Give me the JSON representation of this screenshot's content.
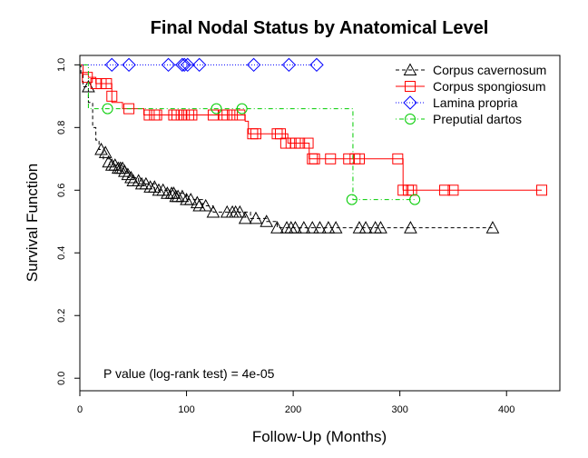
{
  "chart_data": {
    "type": "line",
    "title": "Final Nodal Status by Anatomical Level",
    "xlabel": "Follow-Up (Months)",
    "ylabel": "Survival Function",
    "xlim": [
      0,
      450
    ],
    "ylim": [
      -0.04,
      1.03
    ],
    "x_ticks": [
      0,
      100,
      200,
      300,
      400
    ],
    "y_ticks": [
      0.0,
      0.2,
      0.4,
      0.6,
      0.8,
      1.0
    ],
    "y_tick_labels": [
      "0.0",
      "0.2",
      "0.4",
      "0.6",
      "0.8",
      "1.0"
    ],
    "legend_position": "top-right",
    "grid": false,
    "annotation": "P value (log-rank test) =  4e-05",
    "series": [
      {
        "name": "Corpus cavernosum",
        "color": "#000000",
        "line_style": "dashed",
        "marker": "triangle",
        "steps": [
          [
            0,
            1.0
          ],
          [
            1,
            0.97
          ],
          [
            3,
            0.93
          ],
          [
            8,
            0.88
          ],
          [
            12,
            0.8
          ],
          [
            15,
            0.76
          ],
          [
            18,
            0.73
          ],
          [
            22,
            0.7
          ],
          [
            28,
            0.68
          ],
          [
            38,
            0.66
          ],
          [
            45,
            0.64
          ],
          [
            55,
            0.62
          ],
          [
            70,
            0.6
          ],
          [
            85,
            0.59
          ],
          [
            100,
            0.57
          ],
          [
            115,
            0.55
          ],
          [
            125,
            0.53
          ],
          [
            145,
            0.53
          ],
          [
            160,
            0.51
          ],
          [
            175,
            0.5
          ],
          [
            185,
            0.48
          ],
          [
            387,
            0.48
          ]
        ],
        "censored": [
          [
            8,
            0.93
          ],
          [
            20,
            0.73
          ],
          [
            24,
            0.72
          ],
          [
            27,
            0.69
          ],
          [
            30,
            0.68
          ],
          [
            33,
            0.68
          ],
          [
            36,
            0.67
          ],
          [
            38,
            0.67
          ],
          [
            40,
            0.67
          ],
          [
            42,
            0.66
          ],
          [
            45,
            0.65
          ],
          [
            48,
            0.64
          ],
          [
            50,
            0.63
          ],
          [
            55,
            0.63
          ],
          [
            58,
            0.62
          ],
          [
            62,
            0.62
          ],
          [
            66,
            0.61
          ],
          [
            70,
            0.61
          ],
          [
            74,
            0.6
          ],
          [
            78,
            0.6
          ],
          [
            82,
            0.59
          ],
          [
            86,
            0.59
          ],
          [
            88,
            0.59
          ],
          [
            90,
            0.58
          ],
          [
            92,
            0.58
          ],
          [
            96,
            0.58
          ],
          [
            100,
            0.57
          ],
          [
            104,
            0.57
          ],
          [
            110,
            0.56
          ],
          [
            112,
            0.55
          ],
          [
            118,
            0.55
          ],
          [
            125,
            0.53
          ],
          [
            138,
            0.53
          ],
          [
            143,
            0.53
          ],
          [
            146,
            0.53
          ],
          [
            150,
            0.53
          ],
          [
            155,
            0.51
          ],
          [
            165,
            0.51
          ],
          [
            175,
            0.5
          ],
          [
            185,
            0.48
          ],
          [
            194,
            0.48
          ],
          [
            198,
            0.48
          ],
          [
            202,
            0.48
          ],
          [
            210,
            0.48
          ],
          [
            218,
            0.48
          ],
          [
            225,
            0.48
          ],
          [
            233,
            0.48
          ],
          [
            240,
            0.48
          ],
          [
            262,
            0.48
          ],
          [
            268,
            0.48
          ],
          [
            277,
            0.48
          ],
          [
            282,
            0.48
          ],
          [
            310,
            0.48
          ],
          [
            387,
            0.48
          ]
        ]
      },
      {
        "name": "Corpus spongiosum",
        "color": "#ff0000",
        "line_style": "solid",
        "marker": "square",
        "steps": [
          [
            0,
            1.0
          ],
          [
            3,
            0.97
          ],
          [
            8,
            0.96
          ],
          [
            15,
            0.94
          ],
          [
            30,
            0.88
          ],
          [
            40,
            0.86
          ],
          [
            60,
            0.84
          ],
          [
            130,
            0.84
          ],
          [
            155,
            0.82
          ],
          [
            158,
            0.78
          ],
          [
            195,
            0.75
          ],
          [
            215,
            0.7
          ],
          [
            300,
            0.7
          ],
          [
            303,
            0.6
          ],
          [
            433,
            0.6
          ]
        ],
        "censored": [
          [
            7,
            0.96
          ],
          [
            15,
            0.94
          ],
          [
            20,
            0.94
          ],
          [
            25,
            0.94
          ],
          [
            30,
            0.9
          ],
          [
            46,
            0.86
          ],
          [
            65,
            0.84
          ],
          [
            70,
            0.84
          ],
          [
            72,
            0.84
          ],
          [
            88,
            0.84
          ],
          [
            91,
            0.84
          ],
          [
            95,
            0.84
          ],
          [
            98,
            0.84
          ],
          [
            102,
            0.84
          ],
          [
            105,
            0.84
          ],
          [
            125,
            0.84
          ],
          [
            135,
            0.84
          ],
          [
            138,
            0.84
          ],
          [
            143,
            0.84
          ],
          [
            150,
            0.84
          ],
          [
            162,
            0.78
          ],
          [
            165,
            0.78
          ],
          [
            185,
            0.78
          ],
          [
            188,
            0.78
          ],
          [
            193,
            0.75
          ],
          [
            198,
            0.75
          ],
          [
            202,
            0.75
          ],
          [
            206,
            0.75
          ],
          [
            214,
            0.75
          ],
          [
            218,
            0.7
          ],
          [
            220,
            0.7
          ],
          [
            235,
            0.7
          ],
          [
            252,
            0.7
          ],
          [
            258,
            0.7
          ],
          [
            262,
            0.7
          ],
          [
            298,
            0.7
          ],
          [
            303,
            0.6
          ],
          [
            308,
            0.6
          ],
          [
            311,
            0.6
          ],
          [
            342,
            0.6
          ],
          [
            350,
            0.6
          ],
          [
            433,
            0.6
          ]
        ]
      },
      {
        "name": "Lamina propria",
        "color": "#0000ff",
        "line_style": "dotted",
        "marker": "diamond",
        "steps": [
          [
            0,
            1.0
          ],
          [
            222,
            1.0
          ]
        ],
        "censored": [
          [
            30,
            1.0
          ],
          [
            46,
            1.0
          ],
          [
            83,
            1.0
          ],
          [
            96,
            1.0
          ],
          [
            98,
            1.0
          ],
          [
            101,
            1.0
          ],
          [
            112,
            1.0
          ],
          [
            163,
            1.0
          ],
          [
            196,
            1.0
          ],
          [
            222,
            1.0
          ]
        ]
      },
      {
        "name": "Preputial dartos",
        "color": "#00cc00",
        "line_style": "dotdash",
        "marker": "circle",
        "steps": [
          [
            0,
            1.0
          ],
          [
            8,
            0.86
          ],
          [
            255,
            0.86
          ],
          [
            256,
            0.57
          ],
          [
            314,
            0.57
          ]
        ],
        "censored": [
          [
            26,
            0.86
          ],
          [
            128,
            0.86
          ],
          [
            152,
            0.86
          ],
          [
            255,
            0.57
          ],
          [
            314,
            0.57
          ]
        ]
      }
    ]
  }
}
